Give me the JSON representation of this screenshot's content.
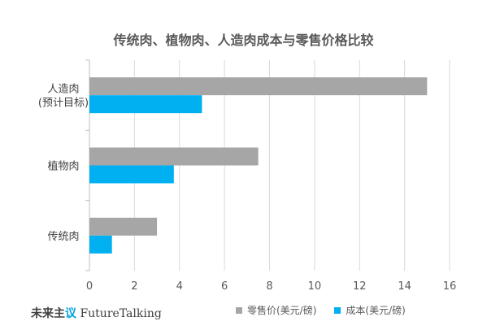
{
  "title": "传统肉、植物肉、人造肉成本与零售价格比较",
  "brand": {
    "part1": "未来主",
    "part2": "议",
    "part3": " FutureTalking"
  },
  "colors": {
    "retail": "#a6a6a6",
    "cost": "#00b0f0",
    "grid": "#d9d9d9",
    "axis": "#bfbfbf"
  },
  "chart_data": {
    "type": "bar",
    "orientation": "horizontal",
    "title": "传统肉、植物肉、人造肉成本与零售价格比较",
    "categories": [
      [
        "人造肉",
        "(预计目标)"
      ],
      [
        "植物肉"
      ],
      [
        "传统肉"
      ]
    ],
    "series": [
      {
        "name": "零售价(美元/磅)",
        "values": [
          15,
          7.5,
          3
        ]
      },
      {
        "name": "成本(美元/磅)",
        "values": [
          5,
          3.75,
          1
        ]
      }
    ],
    "xlim": [
      0,
      16
    ],
    "xticks": [
      0,
      2,
      4,
      6,
      8,
      10,
      12,
      14,
      16
    ],
    "grid": true,
    "legend": "bottom"
  }
}
